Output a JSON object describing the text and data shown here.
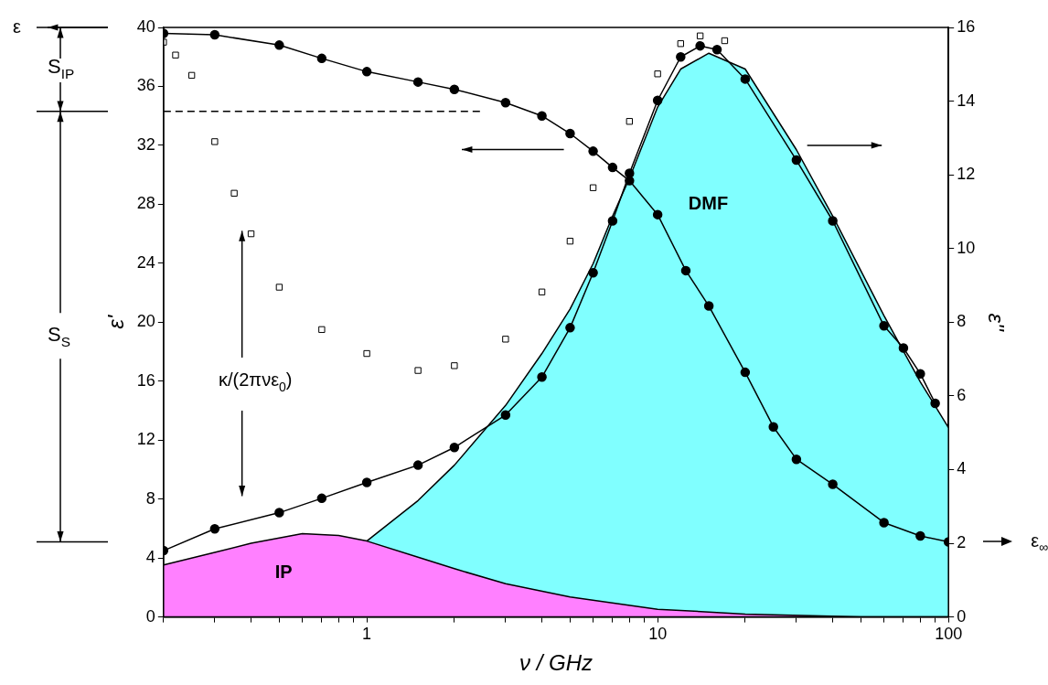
{
  "chart_data": {
    "type": "line",
    "xlabel": "ν / GHz",
    "ylabel": "ε'",
    "y2label": "ε''",
    "log": "x",
    "grid": false,
    "legend": false,
    "xlim": [
      0.2,
      100
    ],
    "xticks": [
      {
        "value": 0.2,
        "label": null
      },
      {
        "value": 0.3,
        "label": null
      },
      {
        "value": 0.4,
        "label": null
      },
      {
        "value": 0.5,
        "label": null
      },
      {
        "value": 0.6,
        "label": null
      },
      {
        "value": 0.7,
        "label": null
      },
      {
        "value": 0.8,
        "label": null
      },
      {
        "value": 0.9,
        "label": null
      },
      1,
      {
        "value": 2,
        "label": null
      },
      {
        "value": 3,
        "label": null
      },
      {
        "value": 4,
        "label": null
      },
      {
        "value": 5,
        "label": null
      },
      {
        "value": 6,
        "label": null
      },
      {
        "value": 7,
        "label": null
      },
      {
        "value": 8,
        "label": null
      },
      {
        "value": 9,
        "label": null
      },
      10,
      {
        "value": 20,
        "label": null
      },
      {
        "value": 30,
        "label": null
      },
      {
        "value": 40,
        "label": null
      },
      {
        "value": 50,
        "label": null
      },
      {
        "value": 60,
        "label": null
      },
      {
        "value": 70,
        "label": null
      },
      {
        "value": 80,
        "label": null
      },
      {
        "value": 90,
        "label": null
      },
      100
    ],
    "ylim": [
      0,
      40
    ],
    "yticks": [
      0,
      4,
      8,
      12,
      16,
      20,
      24,
      28,
      32,
      36,
      40
    ],
    "y2lim": [
      0,
      16
    ],
    "y2ticks": [
      0,
      2,
      4,
      6,
      8,
      10,
      12,
      14,
      16
    ],
    "series": [
      {
        "type": "area",
        "color": "#80ffff",
        "axis": "y2",
        "marker": "none",
        "x": [
          1,
          1.5,
          2,
          3,
          4,
          5,
          6,
          7,
          8,
          10,
          12,
          15,
          20,
          30,
          40,
          60,
          80,
          100
        ],
        "values": [
          2.06,
          3.16,
          4.12,
          5.74,
          7.15,
          8.36,
          9.59,
          10.88,
          11.91,
          13.84,
          14.87,
          15.3,
          14.87,
          12.68,
          10.88,
          8.18,
          6.38,
          5.14
        ]
      },
      {
        "type": "area",
        "color": "#ff80ff",
        "axis": "y2",
        "marker": "none",
        "x": [
          0.2,
          0.3,
          0.4,
          0.6,
          0.8,
          1,
          1.5,
          2,
          3,
          5,
          10,
          20,
          50,
          100
        ],
        "values": [
          1.41,
          1.75,
          2.0,
          2.26,
          2.21,
          2.06,
          1.62,
          1.31,
          0.9,
          0.54,
          0.21,
          0.08,
          0,
          0
        ]
      },
      {
        "color": "#000000",
        "marker": "none",
        "line_style": "dashed",
        "x": [
          0.2,
          2.5
        ],
        "values": [
          34.3,
          34.3
        ]
      },
      {
        "type": "scatter",
        "color": "#000000",
        "axis": "y2",
        "marker": "square",
        "x": [
          0.2,
          0.22,
          0.25,
          0.3,
          0.35,
          0.4,
          0.5,
          0.7,
          1,
          1.5,
          2,
          3,
          4,
          5,
          6,
          8,
          10,
          12,
          14,
          17
        ],
        "values": [
          15.6,
          15.25,
          14.7,
          12.9,
          11.5,
          10.4,
          8.95,
          7.8,
          7.15,
          6.69,
          6.82,
          7.54,
          8.82,
          10.2,
          11.65,
          13.45,
          14.74,
          15.56,
          15.77,
          15.64
        ]
      },
      {
        "color": "#000000",
        "axis": "y2",
        "marker": "circle",
        "x": [
          0.2,
          0.3,
          0.5,
          0.7,
          1,
          1.5,
          2,
          3,
          4,
          5,
          6,
          7,
          8,
          10,
          12,
          14,
          16,
          20,
          30,
          40,
          60,
          70,
          80,
          90
        ],
        "values": [
          1.8,
          2.39,
          2.83,
          3.22,
          3.65,
          4.12,
          4.6,
          5.48,
          6.51,
          7.85,
          9.34,
          10.75,
          12.04,
          14.02,
          15.2,
          15.5,
          15.4,
          14.6,
          12.4,
          10.75,
          7.9,
          7.3,
          6.6,
          5.8
        ]
      },
      {
        "color": "#000000",
        "marker": "circle",
        "x": [
          0.2,
          0.3,
          0.5,
          0.7,
          1,
          1.5,
          2,
          3,
          4,
          5,
          6,
          7,
          8,
          10,
          12.5,
          15,
          20,
          25,
          30,
          40,
          60,
          80,
          100
        ],
        "values": [
          39.6,
          39.5,
          38.8,
          37.9,
          37.0,
          36.3,
          35.8,
          34.9,
          34.0,
          32.8,
          31.6,
          30.5,
          29.6,
          27.3,
          23.5,
          21.1,
          16.6,
          12.9,
          10.7,
          9.0,
          6.4,
          5.5,
          5.1
        ]
      }
    ],
    "annotations": [
      "DMF",
      "IP",
      "κ/(2πνε$_{0}$)",
      "ε",
      "S$_{IP}$",
      "S$_{S}$",
      "ε$_{∞}$"
    ]
  }
}
